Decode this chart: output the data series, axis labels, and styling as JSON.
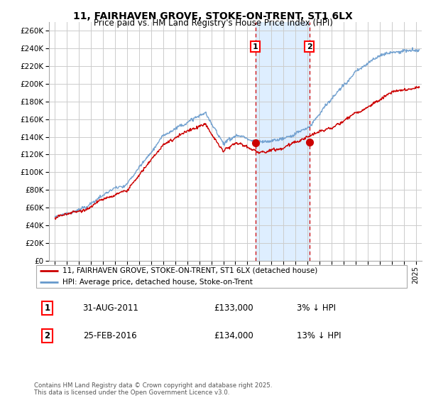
{
  "title": "11, FAIRHAVEN GROVE, STOKE-ON-TRENT, ST1 6LX",
  "subtitle": "Price paid vs. HM Land Registry's House Price Index (HPI)",
  "ylabel_ticks": [
    "£0",
    "£20K",
    "£40K",
    "£60K",
    "£80K",
    "£100K",
    "£120K",
    "£140K",
    "£160K",
    "£180K",
    "£200K",
    "£220K",
    "£240K",
    "£260K"
  ],
  "ytick_values": [
    0,
    20000,
    40000,
    60000,
    80000,
    100000,
    120000,
    140000,
    160000,
    180000,
    200000,
    220000,
    240000,
    260000
  ],
  "ylim": [
    0,
    270000
  ],
  "xlim_start": 1994.5,
  "xlim_end": 2025.5,
  "sale1_date": 2011.67,
  "sale1_price": 133000,
  "sale2_date": 2016.15,
  "sale2_price": 134000,
  "red_line_color": "#cc0000",
  "blue_line_color": "#6699cc",
  "shade_color": "#deeeff",
  "dashed_color": "#cc0000",
  "legend_label_red": "11, FAIRHAVEN GROVE, STOKE-ON-TRENT, ST1 6LX (detached house)",
  "legend_label_blue": "HPI: Average price, detached house, Stoke-on-Trent",
  "footer": "Contains HM Land Registry data © Crown copyright and database right 2025.\nThis data is licensed under the Open Government Licence v3.0.",
  "background_color": "#ffffff",
  "grid_color": "#cccccc"
}
